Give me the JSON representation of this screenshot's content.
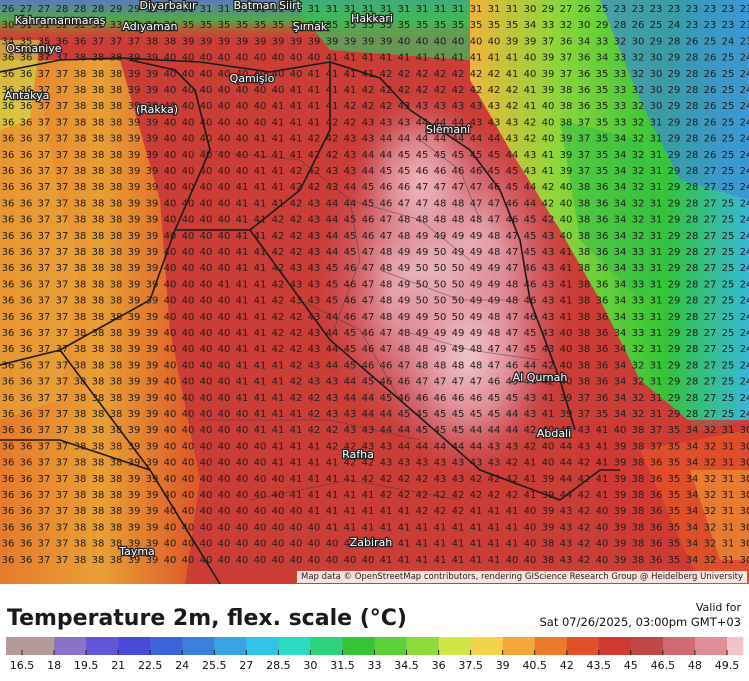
{
  "map": {
    "attribution": "Map data © OpenStreetMap contributors, rendering GIScience Research Group @ Heidelberg University",
    "place_labels": [
      {
        "text": "Diyarbakır"
      },
      {
        "text": "Batman"
      },
      {
        "text": "Siirt"
      },
      {
        "text": "Kahramanmaraş"
      },
      {
        "text": "Adıyaman"
      },
      {
        "text": "Şırnak"
      },
      {
        "text": "Hakkari"
      },
      {
        "text": "Osmaniye"
      },
      {
        "text": "Qamişlo"
      },
      {
        "text": "Antakya"
      },
      {
        "text": "(Rakka)"
      },
      {
        "text": "Slêmanî"
      },
      {
        "text": "Rafha"
      },
      {
        "text": "Abdali"
      },
      {
        "text": "Al Qurnah"
      },
      {
        "text": "Zabirah"
      },
      {
        "text": "Tayma"
      }
    ]
  },
  "legend": {
    "title": "Temperature 2m, flex. scale (°C)",
    "valid_label": "Valid for",
    "valid_time": "Sat 07/26/2025, 03:00pm GMT+03",
    "ticks": [
      "16.5",
      "18",
      "19.5",
      "21",
      "22.5",
      "24",
      "25.5",
      "27",
      "28.5",
      "30",
      "31.5",
      "33",
      "34.5",
      "36",
      "37.5",
      "39",
      "40.5",
      "42",
      "43.5",
      "45",
      "46.5",
      "48",
      "49.5"
    ],
    "scale_min": 15.75,
    "scale_max": 50.25,
    "color_stops": [
      {
        "t": 15.75,
        "c": "#b69a9a"
      },
      {
        "t": 18,
        "c": "#8a72c8"
      },
      {
        "t": 19.5,
        "c": "#6256d6"
      },
      {
        "t": 21,
        "c": "#4a4ad8"
      },
      {
        "t": 22.5,
        "c": "#3f63d8"
      },
      {
        "t": 24,
        "c": "#3c7fdc"
      },
      {
        "t": 25.5,
        "c": "#3aa3e2"
      },
      {
        "t": 27,
        "c": "#31c3e8"
      },
      {
        "t": 28.5,
        "c": "#2cd9c2"
      },
      {
        "t": 30,
        "c": "#2dd27a"
      },
      {
        "t": 31.5,
        "c": "#33c437"
      },
      {
        "t": 33,
        "c": "#5bd03a"
      },
      {
        "t": 34.5,
        "c": "#8edb3b"
      },
      {
        "t": 36,
        "c": "#cfe645"
      },
      {
        "t": 37.5,
        "c": "#f2d24a"
      },
      {
        "t": 39,
        "c": "#f2a83a"
      },
      {
        "t": 40.5,
        "c": "#ec7a2b"
      },
      {
        "t": 42,
        "c": "#e0502a"
      },
      {
        "t": 43.5,
        "c": "#cf3a32"
      },
      {
        "t": 45,
        "c": "#c04747"
      },
      {
        "t": 46.5,
        "c": "#cf6a72"
      },
      {
        "t": 48,
        "c": "#e08e97"
      },
      {
        "t": 49.5,
        "c": "#f1c3c8"
      },
      {
        "t": 50.25,
        "c": "#f7dbde"
      }
    ]
  }
}
